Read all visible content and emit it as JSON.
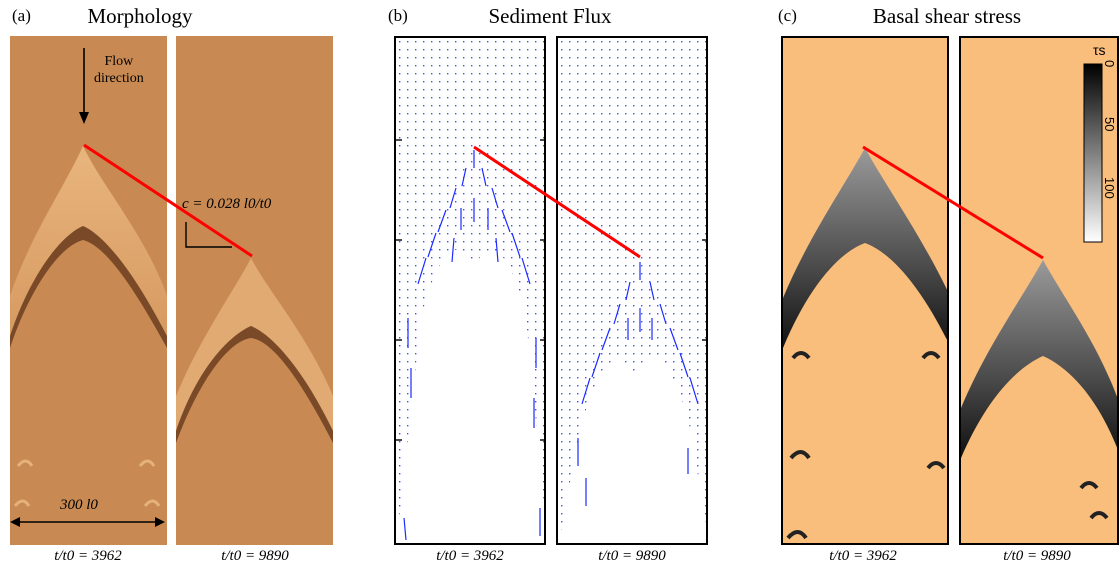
{
  "panel_a": {
    "label": "(a)",
    "title": "Morphology",
    "flow_label_line1": "Flow",
    "flow_label_line2": "direction",
    "celerity_label": "c = 0.028 l0/t0",
    "scale_label": "300 l0",
    "captions": [
      "t/t0 = 3962",
      "t/t0 = 9890"
    ]
  },
  "panel_b": {
    "label": "(b)",
    "title": "Sediment Flux",
    "captions": [
      "t/t0 = 3962",
      "t/t0 = 9890"
    ]
  },
  "panel_c": {
    "label": "(c)",
    "title": "Basal shear stress",
    "colorbar_label": "τs",
    "colorbar_ticks": [
      "0",
      "50",
      "100"
    ],
    "captions": [
      "t/t0 = 3962",
      "t/t0 = 9890"
    ]
  },
  "colors": {
    "sand": "#c98a52",
    "sand_light": "#f9bd7c",
    "connector": "#ff0000",
    "vectors": "#1a2cff"
  }
}
